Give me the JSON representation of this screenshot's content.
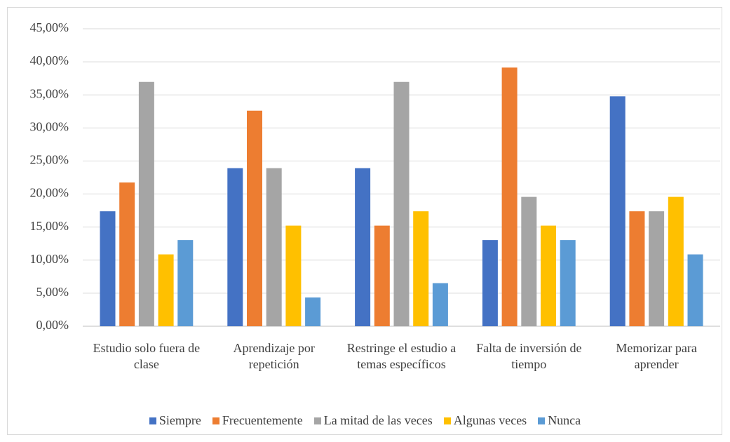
{
  "chart_data": {
    "type": "bar",
    "categories": [
      "Estudio solo fuera de clase",
      "Aprendizaje por repetición",
      "Restringe el estudio a temas específicos",
      "Falta de inversión de tiempo",
      "Memorizar para aprender"
    ],
    "series": [
      {
        "name": "Siempre",
        "color": "#4472c4",
        "values": [
          17.39,
          23.91,
          23.91,
          13.04,
          34.78
        ]
      },
      {
        "name": "Frecuentemente",
        "color": "#ed7d31",
        "values": [
          21.74,
          32.61,
          15.22,
          39.13,
          17.39
        ]
      },
      {
        "name": "La mitad de las veces",
        "color": "#a5a5a5",
        "values": [
          36.96,
          23.91,
          36.96,
          19.57,
          17.39
        ]
      },
      {
        "name": "Algunas veces",
        "color": "#ffc000",
        "values": [
          10.87,
          15.22,
          17.39,
          15.22,
          19.57
        ]
      },
      {
        "name": "Nunca",
        "color": "#5b9bd5",
        "values": [
          13.04,
          4.35,
          6.52,
          13.04,
          10.87
        ]
      }
    ],
    "ylim": [
      0,
      45
    ],
    "yticks": [
      {
        "value": 0,
        "label": "0,00%"
      },
      {
        "value": 5,
        "label": "5,00%"
      },
      {
        "value": 10,
        "label": "10,00%"
      },
      {
        "value": 15,
        "label": "15,00%"
      },
      {
        "value": 20,
        "label": "20,00%"
      },
      {
        "value": 25,
        "label": "25,00%"
      },
      {
        "value": 30,
        "label": "30,00%"
      },
      {
        "value": 35,
        "label": "35,00%"
      },
      {
        "value": 40,
        "label": "40,00%"
      },
      {
        "value": 45,
        "label": "45,00%"
      }
    ],
    "grid": true,
    "legend": "bottom"
  }
}
